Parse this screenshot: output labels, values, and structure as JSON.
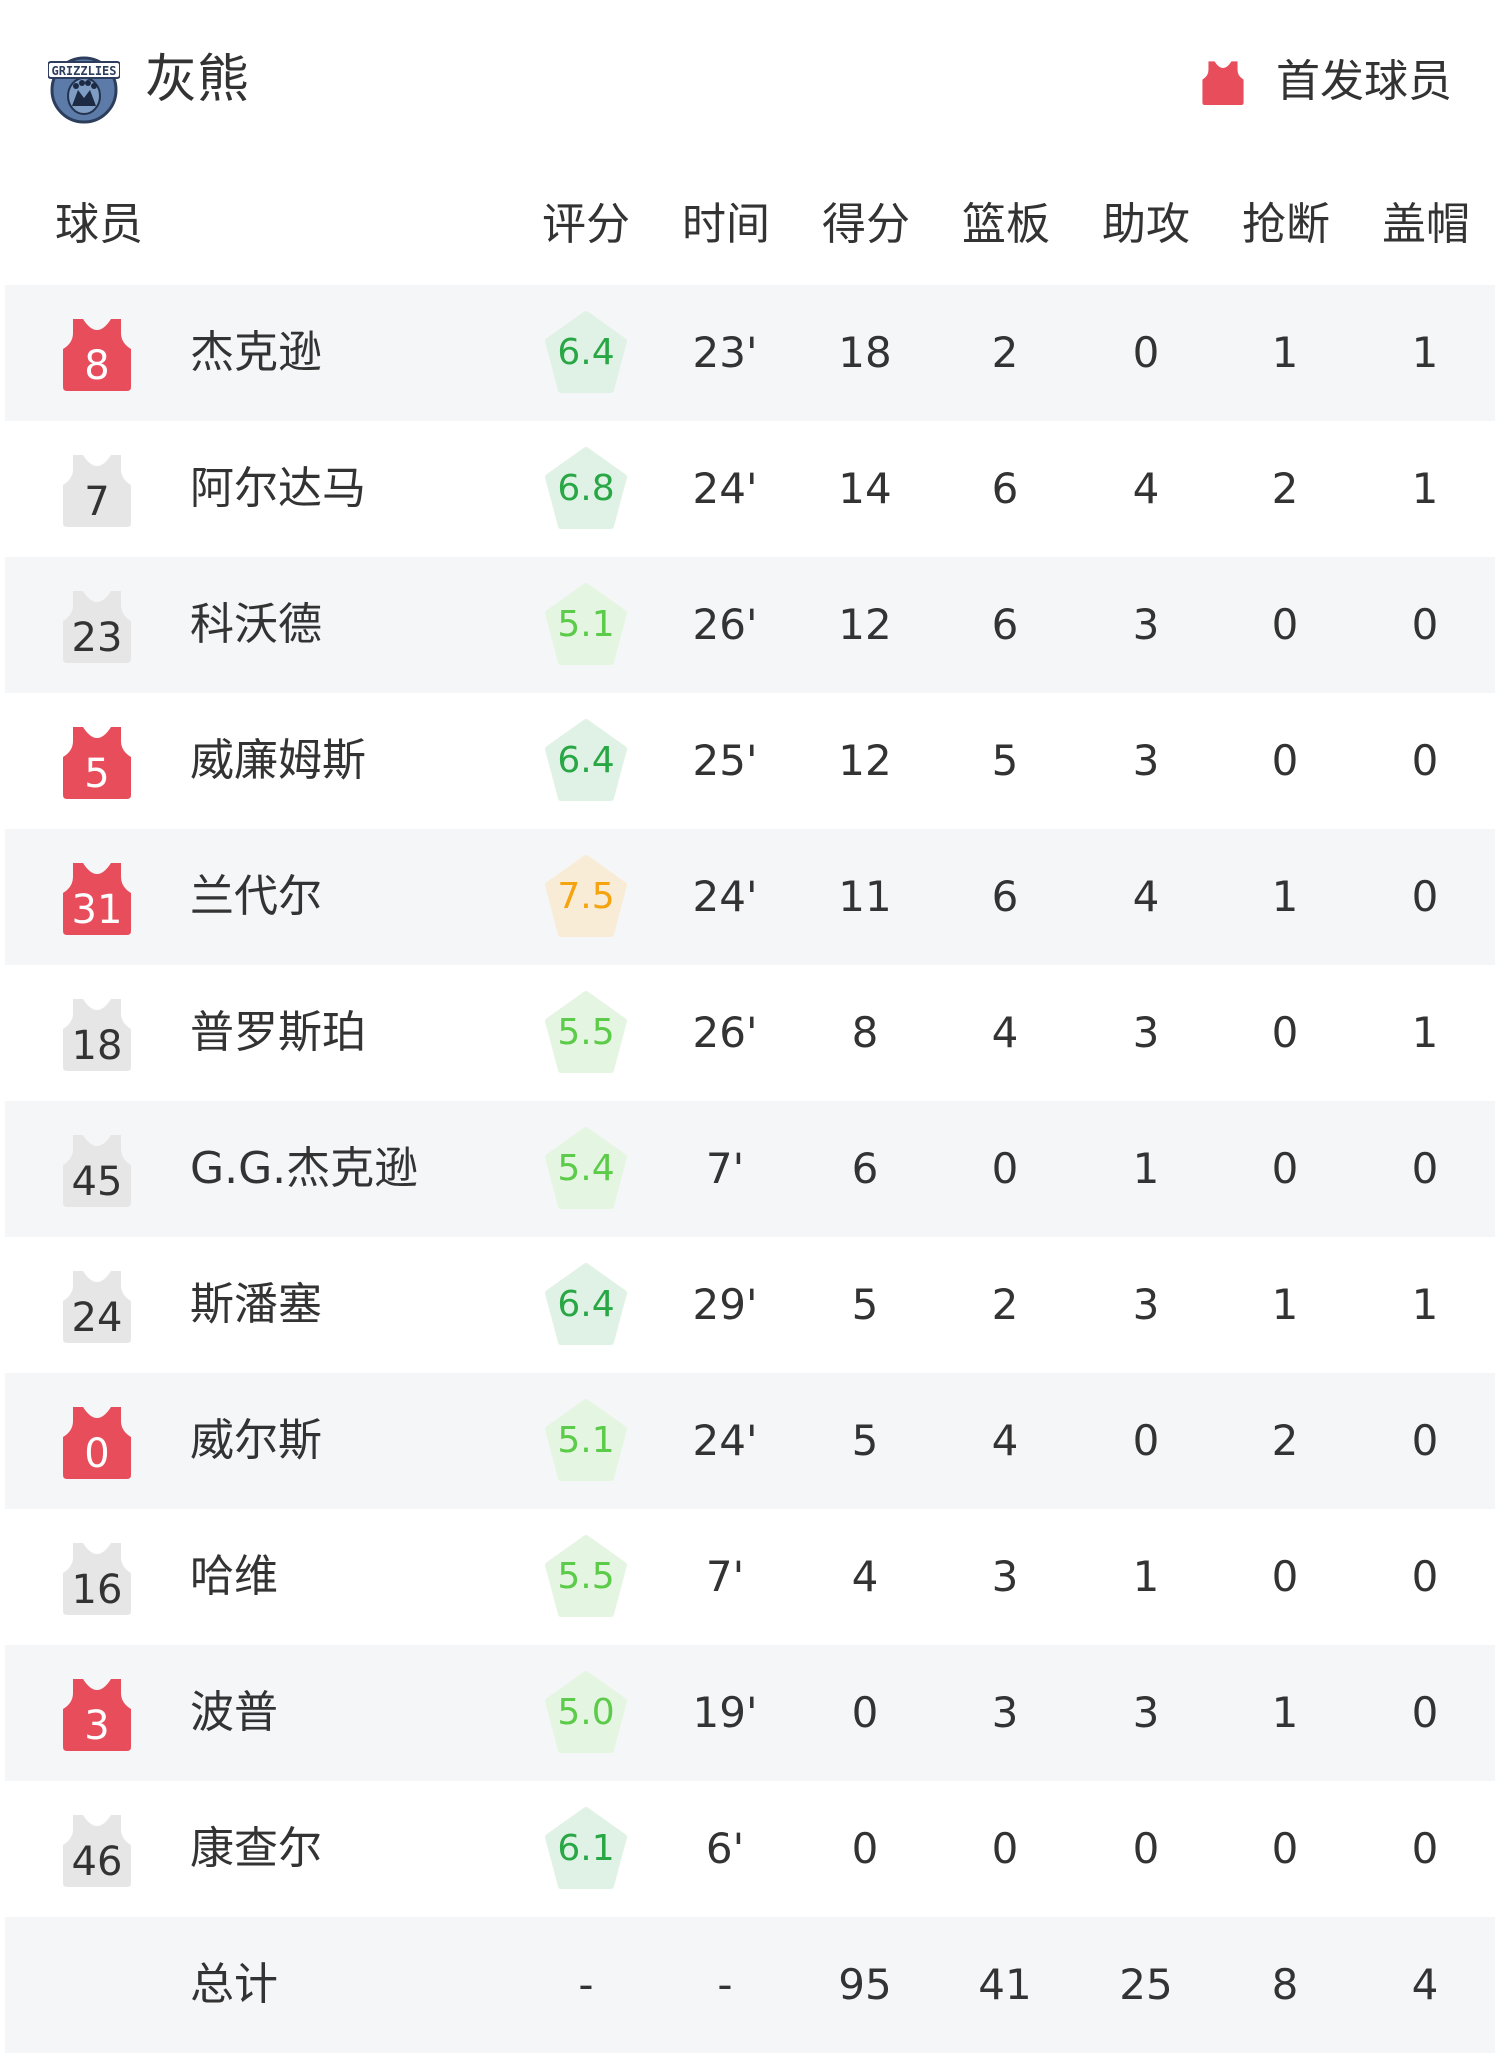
{
  "team": {
    "name": "灰熊",
    "logo_text": "GRIZZLIES",
    "logo_icon": "grizzlies-logo"
  },
  "legend": {
    "label": "首发球员",
    "icon": "jersey-icon",
    "color": "#e84d5b"
  },
  "colors": {
    "starter": "#e84d5b",
    "bench": "#e6e6e6",
    "row_alt": "#f5f6f8",
    "rating_high_text": "#2aa745",
    "rating_high_bg": "#e0f2e5",
    "rating_low_text": "#5ccb4a",
    "rating_low_bg": "#e4f6e1",
    "rating_top_text": "#f5a30f",
    "rating_top_bg": "#f9ecd6"
  },
  "columns": [
    "球员",
    "评分",
    "时间",
    "得分",
    "篮板",
    "助攻",
    "抢断",
    "盖帽"
  ],
  "players": [
    {
      "number": "8",
      "name": "杰克逊",
      "starter": true,
      "rating": "6.4",
      "tier": "high",
      "time": "23'",
      "pts": "18",
      "reb": "2",
      "ast": "0",
      "stl": "1",
      "blk": "1"
    },
    {
      "number": "7",
      "name": "阿尔达马",
      "starter": false,
      "rating": "6.8",
      "tier": "high",
      "time": "24'",
      "pts": "14",
      "reb": "6",
      "ast": "4",
      "stl": "2",
      "blk": "1"
    },
    {
      "number": "23",
      "name": "科沃德",
      "starter": false,
      "rating": "5.1",
      "tier": "low",
      "time": "26'",
      "pts": "12",
      "reb": "6",
      "ast": "3",
      "stl": "0",
      "blk": "0"
    },
    {
      "number": "5",
      "name": "威廉姆斯",
      "starter": true,
      "rating": "6.4",
      "tier": "high",
      "time": "25'",
      "pts": "12",
      "reb": "5",
      "ast": "3",
      "stl": "0",
      "blk": "0"
    },
    {
      "number": "31",
      "name": "兰代尔",
      "starter": true,
      "rating": "7.5",
      "tier": "top",
      "time": "24'",
      "pts": "11",
      "reb": "6",
      "ast": "4",
      "stl": "1",
      "blk": "0"
    },
    {
      "number": "18",
      "name": "普罗斯珀",
      "starter": false,
      "rating": "5.5",
      "tier": "low",
      "time": "26'",
      "pts": "8",
      "reb": "4",
      "ast": "3",
      "stl": "0",
      "blk": "1"
    },
    {
      "number": "45",
      "name": "G.G.杰克逊",
      "starter": false,
      "rating": "5.4",
      "tier": "low",
      "time": "7'",
      "pts": "6",
      "reb": "0",
      "ast": "1",
      "stl": "0",
      "blk": "0"
    },
    {
      "number": "24",
      "name": "斯潘塞",
      "starter": false,
      "rating": "6.4",
      "tier": "high",
      "time": "29'",
      "pts": "5",
      "reb": "2",
      "ast": "3",
      "stl": "1",
      "blk": "1"
    },
    {
      "number": "0",
      "name": "威尔斯",
      "starter": true,
      "rating": "5.1",
      "tier": "low",
      "time": "24'",
      "pts": "5",
      "reb": "4",
      "ast": "0",
      "stl": "2",
      "blk": "0"
    },
    {
      "number": "16",
      "name": "哈维",
      "starter": false,
      "rating": "5.5",
      "tier": "low",
      "time": "7'",
      "pts": "4",
      "reb": "3",
      "ast": "1",
      "stl": "0",
      "blk": "0"
    },
    {
      "number": "3",
      "name": "波普",
      "starter": true,
      "rating": "5.0",
      "tier": "low",
      "time": "19'",
      "pts": "0",
      "reb": "3",
      "ast": "3",
      "stl": "1",
      "blk": "0"
    },
    {
      "number": "46",
      "name": "康查尔",
      "starter": false,
      "rating": "6.1",
      "tier": "high",
      "time": "6'",
      "pts": "0",
      "reb": "0",
      "ast": "0",
      "stl": "0",
      "blk": "0"
    }
  ],
  "totals": {
    "label": "总计",
    "rating": "-",
    "time": "-",
    "pts": "95",
    "reb": "41",
    "ast": "25",
    "stl": "8",
    "blk": "4"
  }
}
